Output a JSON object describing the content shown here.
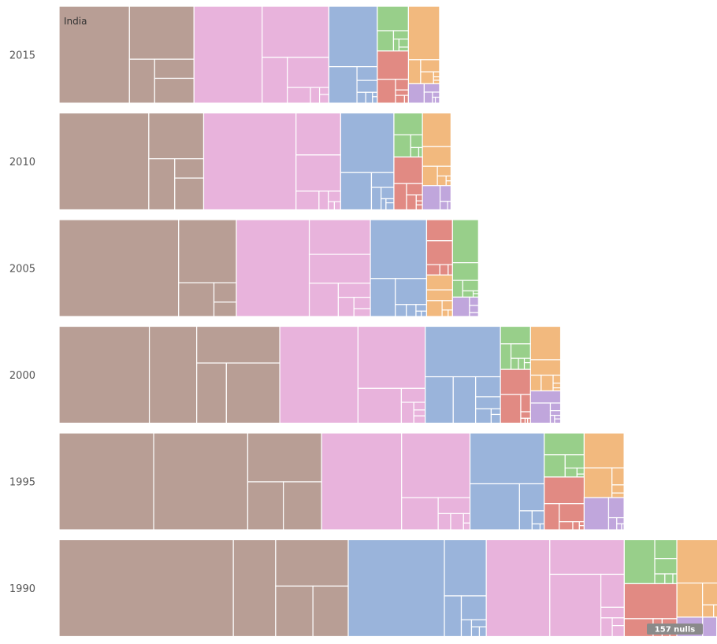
{
  "chart_data": {
    "type": "treemap",
    "title": "",
    "rows": [
      {
        "year": "2015",
        "total": 1.0,
        "groups": [
          {
            "name": "brown",
            "share": 0.39
          },
          {
            "name": "pink",
            "share": 0.39
          },
          {
            "name": "blue",
            "share": 0.14
          },
          {
            "name": "green",
            "share": 0.06
          },
          {
            "name": "orange",
            "share": 0.04
          },
          {
            "name": "red",
            "share": 0.07
          },
          {
            "name": "purple",
            "share": 0.01
          }
        ]
      },
      {
        "year": "2010",
        "total": 1.1,
        "groups": [
          {
            "name": "brown",
            "share": 0.38
          },
          {
            "name": "pink",
            "share": 0.36
          },
          {
            "name": "blue",
            "share": 0.14
          },
          {
            "name": "green",
            "share": 0.05
          },
          {
            "name": "orange",
            "share": 0.03
          },
          {
            "name": "red",
            "share": 0.06
          },
          {
            "name": "purple",
            "share": 0.01
          }
        ]
      },
      {
        "year": "2005",
        "total": 1.25,
        "groups": [
          {
            "name": "brown",
            "share": 0.41
          },
          {
            "name": "pink",
            "share": 0.31
          },
          {
            "name": "blue",
            "share": 0.13
          },
          {
            "name": "red",
            "share": 0.04
          },
          {
            "name": "green",
            "share": 0.04
          },
          {
            "name": "orange",
            "share": 0.03
          },
          {
            "name": "purple",
            "share": 0.01
          }
        ]
      },
      {
        "year": "2000",
        "total": 1.45,
        "groups": [
          {
            "name": "brown",
            "share": 0.44
          },
          {
            "name": "pink",
            "share": 0.29
          },
          {
            "name": "blue",
            "share": 0.15
          },
          {
            "name": "green",
            "share": 0.04
          },
          {
            "name": "orange",
            "share": 0.02
          },
          {
            "name": "red",
            "share": 0.05
          },
          {
            "name": "purple",
            "share": 0.01
          }
        ]
      },
      {
        "year": "1995",
        "total": 1.65,
        "groups": [
          {
            "name": "brown",
            "share": 0.46
          },
          {
            "name": "pink",
            "share": 0.26
          },
          {
            "name": "blue",
            "share": 0.13
          },
          {
            "name": "green",
            "share": 0.05
          },
          {
            "name": "orange",
            "share": 0.02
          },
          {
            "name": "red",
            "share": 0.06
          },
          {
            "name": "purple",
            "share": 0.01
          }
        ]
      },
      {
        "year": "1990",
        "total": 1.9,
        "groups": [
          {
            "name": "brown",
            "share": 0.44
          },
          {
            "name": "blue",
            "share": 0.21
          },
          {
            "name": "pink",
            "share": 0.21
          },
          {
            "name": "green",
            "share": 0.05
          },
          {
            "name": "orange",
            "share": 0.04
          },
          {
            "name": "red",
            "share": 0.06
          },
          {
            "name": "purple",
            "share": 0.01
          }
        ]
      }
    ],
    "annotations": {
      "corner_label": "India",
      "nulls_badge": "157 nulls"
    }
  },
  "colors": {
    "brown": "#b89e95",
    "pink": "#e8b3dc",
    "blue": "#9ab4db",
    "green": "#98cf8a",
    "orange": "#f2b97e",
    "red": "#e18a83",
    "purple": "#c0a6dc"
  }
}
